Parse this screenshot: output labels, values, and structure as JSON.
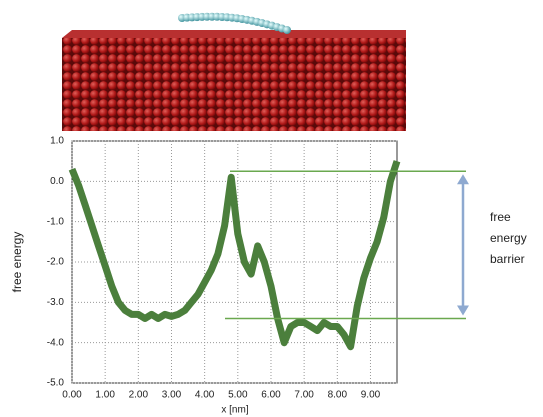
{
  "chart_data": {
    "type": "line",
    "y_label": "free energy",
    "x_label": "x [nm]",
    "annotation_lines": [
      "free",
      "energy",
      "barrier"
    ],
    "xlim": [
      0,
      9.8
    ],
    "ylim": [
      -5,
      1
    ],
    "xticks": [
      {
        "value": 0,
        "label": "0.00"
      },
      {
        "value": 1,
        "label": "1.00"
      },
      {
        "value": 2,
        "label": "2.00"
      },
      {
        "value": 3,
        "label": "3.00"
      },
      {
        "value": 4,
        "label": "4.00"
      },
      {
        "value": 5,
        "label": "5.00"
      },
      {
        "value": 6,
        "label": "6.00"
      },
      {
        "value": 7,
        "label": "7.00"
      },
      {
        "value": 8,
        "label": "8.00"
      },
      {
        "value": 9,
        "label": "9.00"
      }
    ],
    "yticks": [
      {
        "value": 1,
        "label": "1.0"
      },
      {
        "value": 0,
        "label": "0.0"
      },
      {
        "value": -1,
        "label": "-1.0"
      },
      {
        "value": -2,
        "label": "-2.0"
      },
      {
        "value": -3,
        "label": "-3.0"
      },
      {
        "value": -4,
        "label": "-4.0"
      },
      {
        "value": -5,
        "label": "-5.0"
      }
    ],
    "grid": true,
    "color": "#4b7f3c",
    "barrier_color": "#6aa84f",
    "arrow_color": "#8ea9d0",
    "barrier_levels": [
      0.25,
      -3.4
    ],
    "x": [
      0,
      0.2,
      0.4,
      0.6,
      0.8,
      1.0,
      1.2,
      1.4,
      1.6,
      1.8,
      2.0,
      2.2,
      2.4,
      2.6,
      2.8,
      3.0,
      3.2,
      3.4,
      3.6,
      3.8,
      4.0,
      4.2,
      4.4,
      4.6,
      4.8,
      5.0,
      5.2,
      5.4,
      5.6,
      5.8,
      6.0,
      6.2,
      6.4,
      6.6,
      6.8,
      7.0,
      7.2,
      7.4,
      7.6,
      7.8,
      8.0,
      8.2,
      8.4,
      8.6,
      8.8,
      9.0,
      9.2,
      9.4,
      9.6,
      9.8
    ],
    "values": [
      0.3,
      -0.1,
      -0.6,
      -1.1,
      -1.6,
      -2.1,
      -2.6,
      -3.0,
      -3.2,
      -3.3,
      -3.3,
      -3.4,
      -3.3,
      -3.4,
      -3.3,
      -3.35,
      -3.3,
      -3.2,
      -3.0,
      -2.8,
      -2.5,
      -2.2,
      -1.8,
      -1.1,
      0.1,
      -1.3,
      -2.0,
      -2.3,
      -1.6,
      -2.0,
      -2.6,
      -3.4,
      -4.0,
      -3.6,
      -3.5,
      -3.5,
      -3.6,
      -3.7,
      -3.5,
      -3.6,
      -3.6,
      -3.8,
      -4.1,
      -3.1,
      -2.4,
      -1.9,
      -1.5,
      -0.9,
      0.0,
      0.5
    ]
  }
}
